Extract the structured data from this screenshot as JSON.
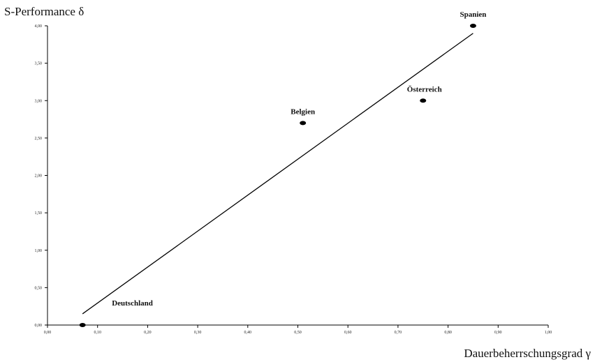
{
  "chart_data": {
    "type": "scatter",
    "xlabel": "Dauerbeherrschungsgrad γ",
    "ylabel": "S-Performance δ",
    "xlim": [
      0,
      1
    ],
    "ylim": [
      0,
      4
    ],
    "x_ticks": [
      "0,00",
      "0,10",
      "0,20",
      "0,30",
      "0,40",
      "0,50",
      "0,60",
      "0,70",
      "0,80",
      "0,90",
      "1,00"
    ],
    "y_ticks": [
      "0,00",
      "0,50",
      "1,00",
      "1,50",
      "2,00",
      "2,50",
      "3,00",
      "3,50",
      "4,00"
    ],
    "points": [
      {
        "label": "Deutschland",
        "x": 0.07,
        "y": 0.0
      },
      {
        "label": "Belgien",
        "x": 0.51,
        "y": 2.7
      },
      {
        "label": "Österreich",
        "x": 0.75,
        "y": 3.0
      },
      {
        "label": "Spanien",
        "x": 0.85,
        "y": 4.0
      }
    ],
    "trendline": {
      "x": [
        0.07,
        0.85
      ],
      "y": [
        0.15,
        3.9
      ]
    },
    "grid": false,
    "legend": "none"
  }
}
